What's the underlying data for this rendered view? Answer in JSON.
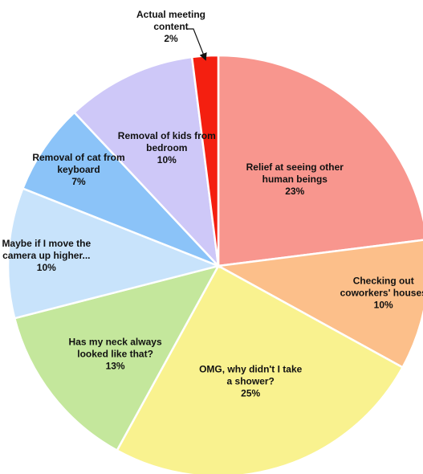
{
  "chart_data": {
    "type": "pie",
    "title": "",
    "start_angle_deg": 0,
    "direction": "clockwise",
    "slices": [
      {
        "lines": [
          "Relief at seeing other",
          "human beings"
        ],
        "value_label": "23%",
        "value": 23,
        "color": "#F8968E"
      },
      {
        "lines": [
          "Checking out",
          "coworkers' houses"
        ],
        "value_label": "10%",
        "value": 10,
        "color": "#FCBF8A"
      },
      {
        "lines": [
          "OMG, why didn't I take",
          "a shower?"
        ],
        "value_label": "25%",
        "value": 25,
        "color": "#F9F28F"
      },
      {
        "lines": [
          "Has my neck always",
          "looked like that?"
        ],
        "value_label": "13%",
        "value": 13,
        "color": "#C4E79C"
      },
      {
        "lines": [
          "Maybe if I move the",
          "camera up higher..."
        ],
        "value_label": "10%",
        "value": 10,
        "color": "#C8E3FB"
      },
      {
        "lines": [
          "Removal of cat from",
          "keyboard"
        ],
        "value_label": "7%",
        "value": 7,
        "color": "#8BC3F8"
      },
      {
        "lines": [
          "Removal of kids from",
          "bedroom"
        ],
        "value_label": "10%",
        "value": 10,
        "color": "#CEC8F8"
      },
      {
        "lines": [
          "Actual meeting",
          "content"
        ],
        "value_label": "2%",
        "value": 2,
        "color": "#F41F10",
        "callout": true
      }
    ]
  }
}
